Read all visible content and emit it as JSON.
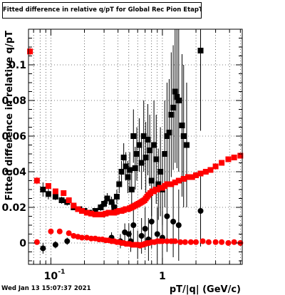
{
  "timestamp": "Wed Jan 13 15:07:37 2021",
  "chart_data": {
    "type": "scatter",
    "title": "Fitted difference in relative q/pT for Global Rec Pion EtapT",
    "xlabel": "pT/|q| (GeV/c)",
    "ylabel": "Fitted difference in relative q/pT",
    "xscale": "log",
    "xlim": [
      0.063,
      5.2
    ],
    "ylim": [
      -0.012,
      0.12
    ],
    "grid": true,
    "x_ticks": [
      {
        "value": 0.1,
        "label": "10",
        "exponent": "-1"
      },
      {
        "value": 1,
        "label": "1",
        "exponent": ""
      }
    ],
    "y_ticks": [
      {
        "value": 0,
        "label": "0"
      },
      {
        "value": 0.02,
        "label": "0.02"
      },
      {
        "value": 0.04,
        "label": "0.04"
      },
      {
        "value": 0.06,
        "label": "0.06"
      },
      {
        "value": 0.08,
        "label": "0.08"
      },
      {
        "value": 0.1,
        "label": "0.1"
      }
    ],
    "series": [
      {
        "marker": "square",
        "color": "#000000",
        "points": [
          [
            0.085,
            0.03,
            0.004
          ],
          [
            0.095,
            0.0275,
            0.003
          ],
          [
            0.11,
            0.026,
            0.002
          ],
          [
            0.125,
            0.024,
            0.002
          ],
          [
            0.14,
            0.023,
            0.002
          ],
          [
            0.16,
            0.02,
            0.0015
          ],
          [
            0.18,
            0.019,
            0.0015
          ],
          [
            0.2,
            0.018,
            0.0015
          ],
          [
            0.22,
            0.017,
            0.0015
          ],
          [
            0.25,
            0.018,
            0.0015
          ],
          [
            0.28,
            0.02,
            0.002
          ],
          [
            0.3,
            0.022,
            0.002
          ],
          [
            0.32,
            0.025,
            0.003
          ],
          [
            0.35,
            0.023,
            0.003
          ],
          [
            0.37,
            0.02,
            0.003
          ],
          [
            0.39,
            0.026,
            0.004
          ],
          [
            0.41,
            0.033,
            0.005
          ],
          [
            0.43,
            0.04,
            0.006
          ],
          [
            0.45,
            0.048,
            0.008
          ],
          [
            0.47,
            0.043,
            0.008
          ],
          [
            0.49,
            0.037,
            0.009
          ],
          [
            0.51,
            0.041,
            0.01
          ],
          [
            0.53,
            0.03,
            0.01
          ],
          [
            0.55,
            0.06,
            0.015
          ],
          [
            0.57,
            0.042,
            0.012
          ],
          [
            0.59,
            0.05,
            0.015
          ],
          [
            0.62,
            0.055,
            0.015
          ],
          [
            0.65,
            0.045,
            0.015
          ],
          [
            0.68,
            0.06,
            0.02
          ],
          [
            0.71,
            0.048,
            0.02
          ],
          [
            0.74,
            0.058,
            0.02
          ],
          [
            0.77,
            0.052,
            0.02
          ],
          [
            0.8,
            0.035,
            0.02
          ],
          [
            0.84,
            0.055,
            0.025
          ],
          [
            0.88,
            0.047,
            0.025
          ],
          [
            0.92,
            0.033,
            0.02
          ],
          [
            0.96,
            0.04,
            0.025
          ],
          [
            1.0,
            0.03,
            0.02
          ],
          [
            1.05,
            0.05,
            0.03
          ],
          [
            1.1,
            0.06,
            0.03
          ],
          [
            1.15,
            0.062,
            0.03
          ],
          [
            1.2,
            0.072,
            0.035
          ],
          [
            1.25,
            0.076,
            0.035
          ],
          [
            1.3,
            0.085,
            0.04
          ],
          [
            1.35,
            0.082,
            0.04
          ],
          [
            1.4,
            0.08,
            0.04
          ],
          [
            1.5,
            0.066,
            0.04
          ],
          [
            1.55,
            0.06,
            0.04
          ],
          [
            1.65,
            0.055,
            0.035
          ],
          [
            2.2,
            0.108,
            0.045
          ]
        ]
      },
      {
        "marker": "circle",
        "color": "#000000",
        "points": [
          [
            0.085,
            -0.003,
            0.003
          ],
          [
            0.11,
            -0.001,
            0.002
          ],
          [
            0.14,
            0.001,
            0.002
          ],
          [
            0.35,
            0.003,
            0.003
          ],
          [
            0.42,
            0.001,
            0.004
          ],
          [
            0.46,
            0.006,
            0.005
          ],
          [
            0.5,
            0.005,
            0.006
          ],
          [
            0.52,
            0.001,
            0.006
          ],
          [
            0.55,
            0.01,
            0.01
          ],
          [
            0.6,
            -0.001,
            0.008
          ],
          [
            0.65,
            0.004,
            0.01
          ],
          [
            0.7,
            0.008,
            0.012
          ],
          [
            0.75,
            0.002,
            0.012
          ],
          [
            0.8,
            0.012,
            0.015
          ],
          [
            0.9,
            0.005,
            0.015
          ],
          [
            1.0,
            0.003,
            0.015
          ],
          [
            1.1,
            0.015,
            0.02
          ],
          [
            1.25,
            0.012,
            0.02
          ],
          [
            1.4,
            0.01,
            0.02
          ],
          [
            2.2,
            0.018,
            0.02
          ]
        ]
      },
      {
        "marker": "square",
        "color": "#ff0000",
        "points": [
          [
            0.065,
            0.1075,
            0.002
          ],
          [
            0.075,
            0.035,
            0.002
          ],
          [
            0.095,
            0.032,
            0.0015
          ],
          [
            0.11,
            0.029,
            0.001
          ],
          [
            0.13,
            0.028,
            0.001
          ],
          [
            0.145,
            0.024,
            0.001
          ],
          [
            0.16,
            0.021,
            0.001
          ],
          [
            0.175,
            0.019,
            0.001
          ],
          [
            0.19,
            0.018,
            0.001
          ],
          [
            0.21,
            0.017,
            0.001
          ],
          [
            0.23,
            0.0165,
            0.001
          ],
          [
            0.25,
            0.016,
            0.001
          ],
          [
            0.27,
            0.016,
            0.001
          ],
          [
            0.29,
            0.016,
            0.001
          ],
          [
            0.31,
            0.0165,
            0.001
          ],
          [
            0.33,
            0.017,
            0.001
          ],
          [
            0.35,
            0.017,
            0.001
          ],
          [
            0.37,
            0.017,
            0.001
          ],
          [
            0.39,
            0.0175,
            0.001
          ],
          [
            0.41,
            0.018,
            0.001
          ],
          [
            0.43,
            0.018,
            0.001
          ],
          [
            0.45,
            0.0185,
            0.001
          ],
          [
            0.47,
            0.019,
            0.001
          ],
          [
            0.49,
            0.019,
            0.001
          ],
          [
            0.51,
            0.0195,
            0.001
          ],
          [
            0.53,
            0.02,
            0.001
          ],
          [
            0.55,
            0.0205,
            0.001
          ],
          [
            0.57,
            0.021,
            0.001
          ],
          [
            0.59,
            0.0215,
            0.001
          ],
          [
            0.61,
            0.022,
            0.001
          ],
          [
            0.63,
            0.0225,
            0.001
          ],
          [
            0.65,
            0.023,
            0.001
          ],
          [
            0.67,
            0.0235,
            0.001
          ],
          [
            0.69,
            0.024,
            0.001
          ],
          [
            0.71,
            0.025,
            0.001
          ],
          [
            0.73,
            0.026,
            0.001
          ],
          [
            0.75,
            0.027,
            0.001
          ],
          [
            0.78,
            0.028,
            0.001
          ],
          [
            0.81,
            0.029,
            0.001
          ],
          [
            0.84,
            0.029,
            0.001
          ],
          [
            0.87,
            0.03,
            0.001
          ],
          [
            0.9,
            0.03,
            0.001
          ],
          [
            0.95,
            0.031,
            0.001
          ],
          [
            1.0,
            0.031,
            0.001
          ],
          [
            1.05,
            0.032,
            0.001
          ],
          [
            1.1,
            0.033,
            0.001
          ],
          [
            1.2,
            0.033,
            0.001
          ],
          [
            1.3,
            0.034,
            0.001
          ],
          [
            1.4,
            0.035,
            0.001
          ],
          [
            1.55,
            0.036,
            0.001
          ],
          [
            1.7,
            0.037,
            0.001
          ],
          [
            1.85,
            0.037,
            0.001
          ],
          [
            2.0,
            0.038,
            0.001
          ],
          [
            2.2,
            0.039,
            0.001
          ],
          [
            2.45,
            0.04,
            0.001
          ],
          [
            2.7,
            0.041,
            0.001
          ],
          [
            3.0,
            0.043,
            0.001
          ],
          [
            3.4,
            0.045,
            0.001
          ],
          [
            3.9,
            0.047,
            0.001
          ],
          [
            4.4,
            0.048,
            0.001
          ],
          [
            5.0,
            0.049,
            0.001
          ]
        ]
      },
      {
        "marker": "circle",
        "color": "#ff0000",
        "points": [
          [
            0.075,
            0.0005,
            0.001
          ],
          [
            0.1,
            0.0065,
            0.001
          ],
          [
            0.12,
            0.0065,
            0.001
          ],
          [
            0.145,
            0.0055,
            0.001
          ],
          [
            0.16,
            0.004,
            0.001
          ],
          [
            0.175,
            0.0035,
            0.001
          ],
          [
            0.19,
            0.003,
            0.001
          ],
          [
            0.21,
            0.003,
            0.001
          ],
          [
            0.23,
            0.0025,
            0.001
          ],
          [
            0.25,
            0.0025,
            0.001
          ],
          [
            0.27,
            0.002,
            0.001
          ],
          [
            0.29,
            0.002,
            0.001
          ],
          [
            0.31,
            0.0015,
            0.001
          ],
          [
            0.33,
            0.0015,
            0.001
          ],
          [
            0.35,
            0.001,
            0.001
          ],
          [
            0.37,
            0.001,
            0.001
          ],
          [
            0.39,
            0.0005,
            0.001
          ],
          [
            0.41,
            0.0005,
            0.001
          ],
          [
            0.43,
            0.0,
            0.001
          ],
          [
            0.45,
            0.0,
            0.001
          ],
          [
            0.47,
            -0.0005,
            0.001
          ],
          [
            0.49,
            -0.0005,
            0.001
          ],
          [
            0.51,
            -0.0005,
            0.001
          ],
          [
            0.53,
            -0.001,
            0.001
          ],
          [
            0.55,
            -0.001,
            0.001
          ],
          [
            0.57,
            -0.001,
            0.001
          ],
          [
            0.59,
            -0.001,
            0.001
          ],
          [
            0.61,
            -0.001,
            0.001
          ],
          [
            0.63,
            -0.0015,
            0.001
          ],
          [
            0.65,
            -0.001,
            0.001
          ],
          [
            0.67,
            -0.001,
            0.001
          ],
          [
            0.69,
            -0.0005,
            0.001
          ],
          [
            0.71,
            -0.0005,
            0.001
          ],
          [
            0.73,
            0.0,
            0.001
          ],
          [
            0.76,
            0.0,
            0.001
          ],
          [
            0.8,
            0.0005,
            0.001
          ],
          [
            0.85,
            0.0005,
            0.001
          ],
          [
            0.9,
            0.001,
            0.001
          ],
          [
            0.95,
            0.001,
            0.001
          ],
          [
            1.0,
            0.001,
            0.001
          ],
          [
            1.1,
            0.001,
            0.001
          ],
          [
            1.2,
            0.001,
            0.001
          ],
          [
            1.3,
            0.001,
            0.001
          ],
          [
            1.45,
            0.0005,
            0.001
          ],
          [
            1.6,
            0.0005,
            0.001
          ],
          [
            1.8,
            0.0005,
            0.001
          ],
          [
            2.0,
            0.0005,
            0.001
          ],
          [
            2.3,
            0.001,
            0.001
          ],
          [
            2.6,
            0.0005,
            0.001
          ],
          [
            3.0,
            0.0005,
            0.001
          ],
          [
            3.4,
            0.0005,
            0.001
          ],
          [
            3.9,
            0.0,
            0.001
          ],
          [
            4.4,
            0.0005,
            0.001
          ],
          [
            5.0,
            0.0,
            0.001
          ]
        ]
      }
    ]
  }
}
